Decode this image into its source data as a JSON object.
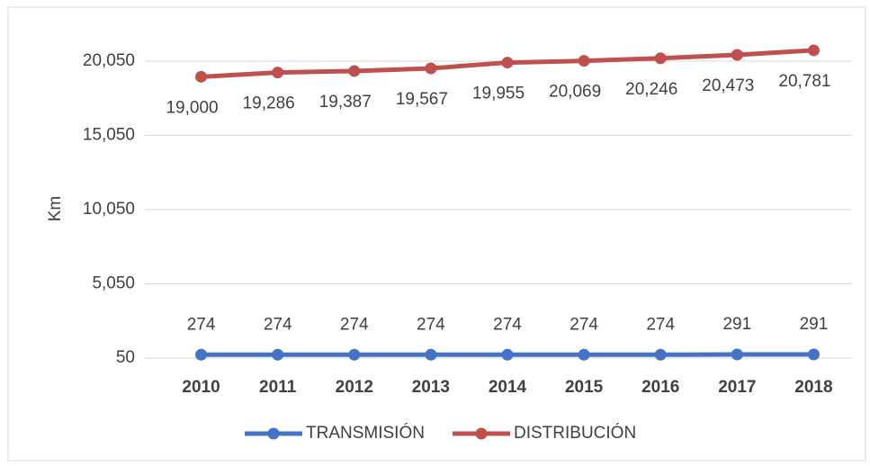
{
  "chart_data": {
    "type": "line",
    "y_axis_label": "Km",
    "categories": [
      "2010",
      "2011",
      "2012",
      "2013",
      "2014",
      "2015",
      "2016",
      "2017",
      "2018"
    ],
    "series": [
      {
        "name": "TRANSMISIÓN",
        "color": "#4472c4",
        "values": [
          274,
          274,
          274,
          274,
          274,
          274,
          274,
          291,
          291
        ]
      },
      {
        "name": "DISTRIBUCIÓN",
        "color": "#c0504d",
        "values": [
          19000,
          19286,
          19387,
          19567,
          19955,
          20069,
          20246,
          20473,
          20781
        ],
        "value_labels": [
          "19,000",
          "19,286",
          "19,387",
          "19,567",
          "19,955",
          "20,069",
          "20,246",
          "20,473",
          "20,781"
        ]
      }
    ],
    "ylim": [
      50,
      22050
    ],
    "yticks": [
      50,
      {
        "value": 5050,
        "label": "5,050"
      },
      {
        "value": 10050,
        "label": "10,050"
      },
      {
        "value": 15050,
        "label": "15,050"
      },
      {
        "value": 20050,
        "label": "20,050"
      }
    ],
    "grid": true,
    "legend": "bottom"
  }
}
